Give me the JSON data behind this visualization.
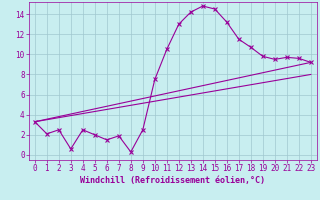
{
  "background_color": "#c8eef0",
  "grid_color": "#a0c8d0",
  "line_color": "#990099",
  "marker_color": "#990099",
  "line1_x": [
    0,
    1,
    2,
    3,
    4,
    5,
    6,
    7,
    8,
    9,
    10,
    11,
    12,
    13,
    14,
    15,
    16,
    17,
    18,
    19,
    20,
    21,
    22,
    23
  ],
  "line1_y": [
    3.3,
    2.1,
    2.5,
    0.6,
    2.5,
    2.0,
    1.5,
    1.9,
    0.3,
    2.5,
    7.5,
    10.5,
    13.0,
    14.2,
    14.8,
    14.5,
    13.2,
    11.5,
    10.7,
    9.8,
    9.5,
    9.7,
    9.6,
    9.2
  ],
  "line2_x": [
    0,
    23
  ],
  "line2_y": [
    3.3,
    9.2
  ],
  "line3_x": [
    0,
    23
  ],
  "line3_y": [
    3.3,
    8.0
  ],
  "ylim": [
    -0.5,
    15.2
  ],
  "xlim": [
    -0.5,
    23.5
  ],
  "yticks": [
    0,
    2,
    4,
    6,
    8,
    10,
    12,
    14
  ],
  "xticks": [
    0,
    1,
    2,
    3,
    4,
    5,
    6,
    7,
    8,
    9,
    10,
    11,
    12,
    13,
    14,
    15,
    16,
    17,
    18,
    19,
    20,
    21,
    22,
    23
  ],
  "xlabel": "Windchill (Refroidissement éolien,°C)",
  "xlabel_fontsize": 6.0,
  "tick_fontsize": 5.5
}
